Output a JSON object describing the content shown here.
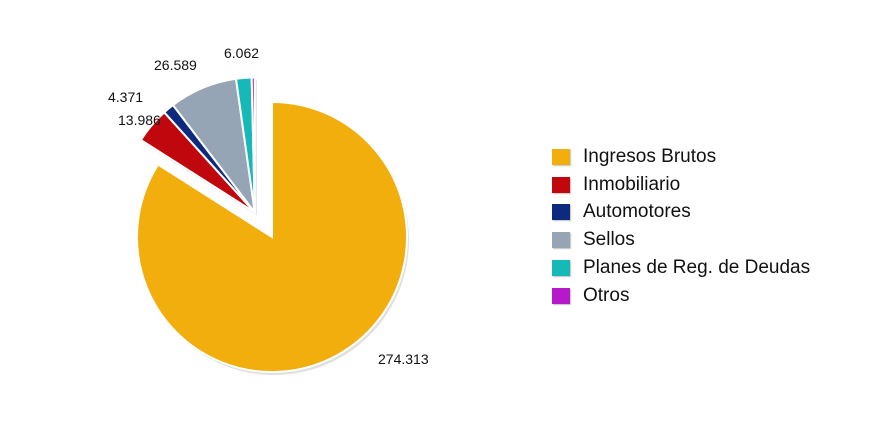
{
  "chart_data": {
    "type": "pie",
    "title": "",
    "legend_position": "right",
    "categories": [
      "Ingresos Brutos",
      "Inmobiliario",
      "Automotores",
      "Sellos",
      "Planes de Reg. de Deudas",
      "Otros"
    ],
    "values": [
      274313,
      13986,
      4371,
      26589,
      6062,
      1200
    ],
    "value_labels": [
      "274.313",
      "13.986",
      "4.371",
      "26.589",
      "6.062",
      ""
    ],
    "colors": [
      "#F2AE0C",
      "#C0070D",
      "#0D2A7E",
      "#95A5B6",
      "#17B9B8",
      "#B619C7"
    ],
    "exploded": [
      false,
      true,
      true,
      true,
      true,
      true
    ]
  }
}
